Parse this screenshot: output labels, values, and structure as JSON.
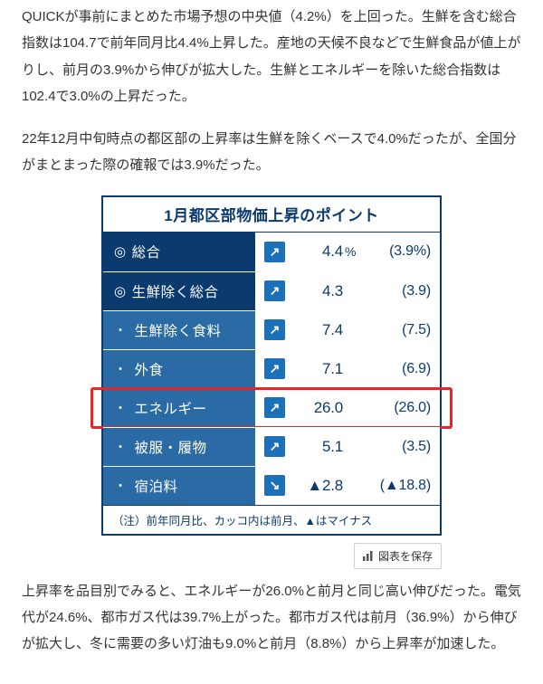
{
  "paragraphs": {
    "p1": "QUICKが事前にまとめた市場予想の中央値（4.2%）を上回った。生鮮を含む総合指数は104.7で前年同月比4.4%上昇した。産地の天候不良などで生鮮食品が値上がりし、前月の3.9%から伸びが拡大した。生鮮とエネルギーを除いた総合指数は102.4で3.0%の上昇だった。",
    "p2": "22年12月中旬時点の都区部の上昇率は生鮮を除くベースで4.0%だったが、全国分がまとまった際の確報では3.9%だった。",
    "p3": "上昇率を品目別でみると、エネルギーが26.0%と前月と同じ高い伸びだった。電気代が24.6%、都市ガス代は39.7%上がった。都市ガス代は前月（36.9%）から伸びが拡大し、冬に需要の多い灯油も9.0%と前月（8.8%）から上昇率が加速した。"
  },
  "chart": {
    "title": "1月都区部物価上昇のポイント",
    "footnote": "（注）前年同月比、カッコ内は前月、▲はマイナス",
    "colors": {
      "label_bg_major": "#0b3a6f",
      "label_bg_minor": "#2a6aa5",
      "arrow_bg": "#1b70b8",
      "border": "#0b3a6f",
      "text_navy": "#0b3a6f",
      "highlight": "#e7262a"
    },
    "rows": [
      {
        "marker": "◎",
        "label": "総合",
        "arrow": "↗",
        "value": "4.4",
        "unit": "%",
        "prev": "(3.9%)",
        "major": true,
        "highlight": false
      },
      {
        "marker": "◎",
        "label": "生鮮除く総合",
        "arrow": "↗",
        "value": "4.3",
        "unit": "",
        "prev": "(3.9)",
        "major": true,
        "highlight": false
      },
      {
        "marker": "・",
        "label": "生鮮除く食料",
        "arrow": "↗",
        "value": "7.4",
        "unit": "",
        "prev": "(7.5)",
        "major": false,
        "highlight": false
      },
      {
        "marker": "・",
        "label": "外食",
        "arrow": "↗",
        "value": "7.1",
        "unit": "",
        "prev": "(6.9)",
        "major": false,
        "highlight": false
      },
      {
        "marker": "・",
        "label": "エネルギー",
        "arrow": "↗",
        "value": "26.0",
        "unit": "",
        "prev": "(26.0)",
        "major": false,
        "highlight": true
      },
      {
        "marker": "・",
        "label": "被服・履物",
        "arrow": "↗",
        "value": "5.1",
        "unit": "",
        "prev": "(3.5)",
        "major": false,
        "highlight": false
      },
      {
        "marker": "・",
        "label": "宿泊料",
        "arrow": "↘",
        "value": "▲2.8",
        "unit": "",
        "prev": "(▲18.8)",
        "major": false,
        "highlight": false
      }
    ]
  },
  "save_button": {
    "label": "図表を保存"
  }
}
